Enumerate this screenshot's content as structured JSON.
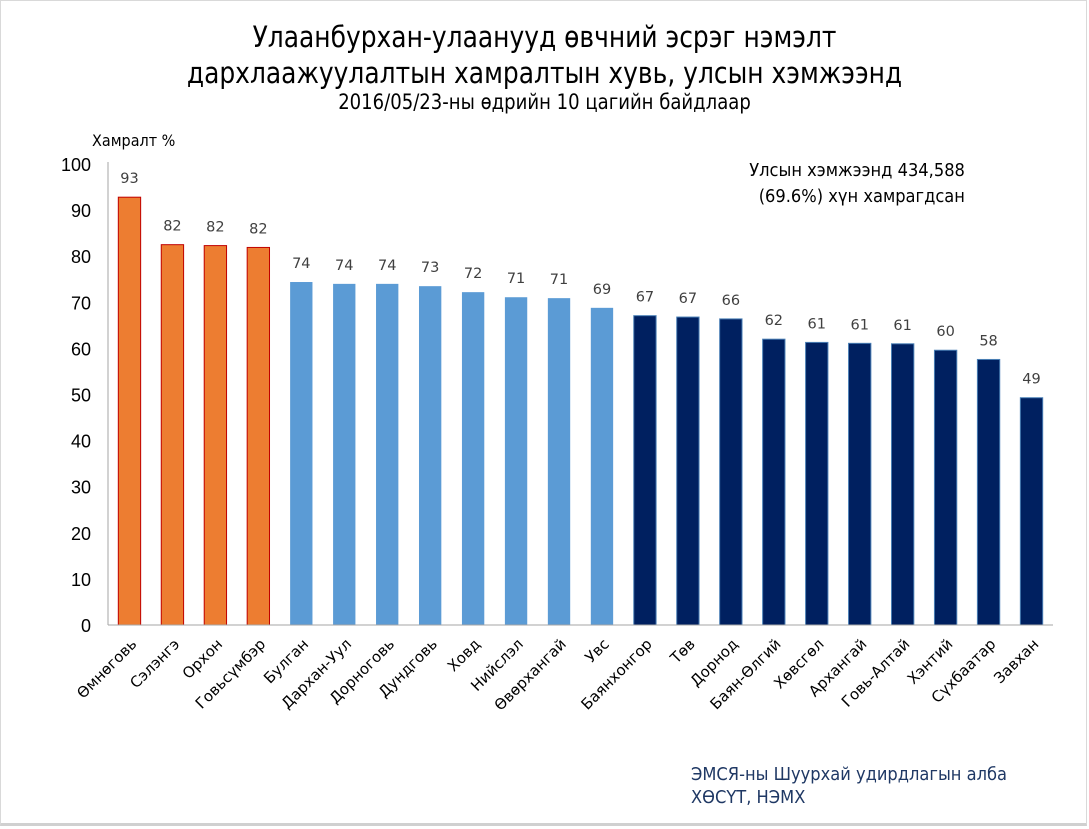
{
  "chart_data": {
    "type": "bar",
    "title": "Улаанбурхан-улаанууд өвчний эсрэг нэмэлт дархлаажуулалтын хамралтын хувь, улсын хэмжээнд",
    "title_lines": [
      "Улаанбурхан-улаанууд  өвчний эсрэг нэмэлт",
      "дархлаажуулалтын  хамралтын хувь, улсын хэмжээнд"
    ],
    "subtitle": "2016/05/23-ны өдрийн 10 цагийн байдлаар",
    "xlabel": "",
    "ylabel": "Хамралт %",
    "ylim": [
      0,
      100
    ],
    "yticks": [
      0,
      10,
      20,
      30,
      40,
      50,
      60,
      70,
      80,
      90,
      100
    ],
    "grid": false,
    "categories": [
      "Өмнөговь",
      "Сэлэнгэ",
      "Орхон",
      "Говьсүмбэр",
      "Булган",
      "Дархан-Уул",
      "Дорноговь",
      "Дундговь",
      "Ховд",
      "Нийслэл",
      "Өвөрхангай",
      "Увс",
      "Баянхонгор",
      "Төв",
      "Дорнод",
      "Баян-Өлгий",
      "Хөвсгөл",
      "Архангай",
      "Говь-Алтай",
      "Хэнтий",
      "Сүхбаатар",
      "Завхан"
    ],
    "values": [
      92.8,
      82.5,
      82.3,
      81.9,
      74.4,
      74.0,
      74.0,
      73.5,
      72.2,
      71.1,
      70.9,
      68.8,
      67.1,
      66.8,
      66.4,
      62.0,
      61.3,
      61.1,
      61.0,
      59.6,
      57.6,
      49.3
    ],
    "data_labels": [
      "93",
      "82",
      "82",
      "82",
      "74",
      "74",
      "74",
      "73",
      "72",
      "71",
      "71",
      "69",
      "67",
      "67",
      "66",
      "62",
      "61",
      "61",
      "61",
      "60",
      "58",
      "49"
    ],
    "bar_groups": [
      "high",
      "high",
      "high",
      "high",
      "mid",
      "mid",
      "mid",
      "mid",
      "mid",
      "mid",
      "mid",
      "mid",
      "low",
      "low",
      "low",
      "low",
      "low",
      "low",
      "low",
      "low",
      "low",
      "low"
    ],
    "colors": {
      "high": "#ed7d31",
      "high_border": "#c00000",
      "mid": "#5b9bd5",
      "low": "#002060",
      "low_border": "#4a7fb5",
      "axis": "#a6a6a6",
      "data_label": "#404040"
    },
    "annotations": [
      "Улсын хэмжээнд 434,588",
      "(69.6%) хүн хамрагдсан"
    ]
  },
  "note": {
    "line1": "Улсын хэмжээнд 434,588",
    "line2": "(69.6%) хүн хамрагдсан"
  },
  "source": {
    "line1": "ЭМСЯ-ны Шуурхай удирдлагын алба",
    "line2": "ХӨСҮТ, НЭМХ"
  }
}
